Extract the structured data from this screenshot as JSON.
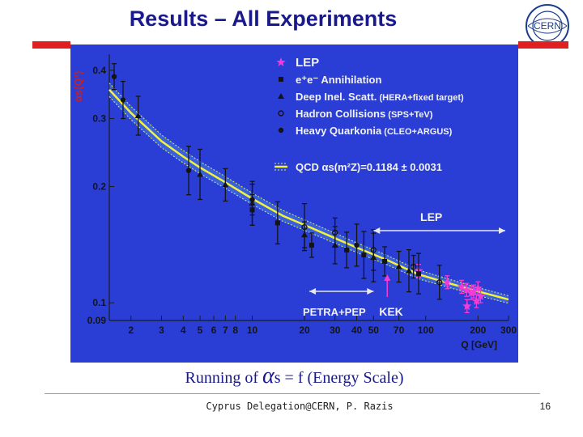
{
  "slide": {
    "title": "Results – All Experiments",
    "logo_text": "CERN",
    "caption_prefix": "Running of ",
    "caption_alpha": "α",
    "caption_suffix": "s = f (Energy Scale)",
    "footer": "Cyprus Delegation@CERN, P. Razis",
    "page_number": "16",
    "colors": {
      "title": "#1a1a8c",
      "accent_red": "#e02020",
      "plot_bg": "#2a3ed6"
    }
  },
  "chart_data": {
    "type": "scatter",
    "title": "",
    "xlabel": "Q [GeV]",
    "ylabel": "αs(Q²)",
    "xscale": "log",
    "xlim": [
      1.5,
      300
    ],
    "ylim": [
      0.09,
      0.44
    ],
    "x_ticks": [
      2,
      3,
      4,
      5,
      6,
      7,
      8,
      10,
      20,
      30,
      40,
      50,
      70,
      100,
      200,
      300
    ],
    "x_tick_labels": [
      "2",
      "3",
      "4",
      "5",
      "6",
      "7",
      "8",
      "10",
      "20",
      "30",
      "40",
      "50",
      "70",
      "100",
      "200",
      "300"
    ],
    "y_ticks": [
      0.09,
      0.1,
      0.2,
      0.3,
      0.4
    ],
    "y_tick_labels": [
      "0.09",
      "0.1",
      "0.2",
      "0.3",
      "0.4"
    ],
    "legend": [
      {
        "marker": "star",
        "label": "LEP",
        "detail": ""
      },
      {
        "marker": "square",
        "label": "e⁺e⁻ Annihilation",
        "detail": ""
      },
      {
        "marker": "triangle",
        "label": "Deep Inel. Scatt.",
        "detail": "(HERA+fixed target)"
      },
      {
        "marker": "cross",
        "label": "Hadron Collisions",
        "detail": "(SPS+TeV)"
      },
      {
        "marker": "circle",
        "label": "Heavy Quarkonia",
        "detail": "(CLEO+ARGUS)"
      }
    ],
    "qcd_band_label": "QCD αs(m²Z)=0.1184 ± 0.0031",
    "annotations": [
      "LEP",
      "PETRA+PEP",
      "KEK"
    ],
    "series": [
      {
        "name": "LEP",
        "marker": "star",
        "points": [
          [
            91,
            0.121
          ],
          [
            133,
            0.113
          ],
          [
            161,
            0.11
          ],
          [
            172,
            0.108
          ],
          [
            183,
            0.106
          ],
          [
            189,
            0.107
          ],
          [
            200,
            0.109
          ],
          [
            207,
            0.104
          ],
          [
            196,
            0.101
          ],
          [
            173,
            0.098
          ]
        ]
      },
      {
        "name": "e⁺e⁻ Annihilation",
        "marker": "square",
        "points": [
          [
            10,
            0.174
          ],
          [
            14,
            0.161
          ],
          [
            22,
            0.141
          ],
          [
            35,
            0.137
          ],
          [
            44,
            0.133
          ],
          [
            58,
            0.128
          ],
          [
            91,
            0.119
          ]
        ]
      },
      {
        "name": "Deep Inel. Scatt.",
        "marker": "triangle",
        "points": [
          [
            2.2,
            0.305
          ],
          [
            5,
            0.215
          ],
          [
            7,
            0.202
          ],
          [
            10,
            0.181
          ],
          [
            20,
            0.15
          ],
          [
            30,
            0.141
          ],
          [
            50,
            0.131
          ],
          [
            70,
            0.124
          ],
          [
            80,
            0.121
          ]
        ]
      },
      {
        "name": "Hadron Collisions",
        "marker": "cross",
        "points": [
          [
            20,
            0.157
          ],
          [
            30,
            0.152
          ],
          [
            50,
            0.137
          ],
          [
            85,
            0.124
          ],
          [
            120,
            0.113
          ]
        ]
      },
      {
        "name": "Heavy Quarkonia",
        "marker": "circle",
        "points": [
          [
            1.6,
            0.385
          ],
          [
            1.8,
            0.335
          ],
          [
            4.3,
            0.22
          ],
          [
            10,
            0.185
          ],
          [
            40,
            0.141
          ]
        ]
      }
    ],
    "qcd_curve": {
      "alpha_mz": 0.1184,
      "error": 0.0031,
      "x": [
        1.5,
        2,
        3,
        4,
        5,
        7,
        10,
        15,
        20,
        30,
        40,
        60,
        91,
        130,
        200,
        300
      ],
      "y": [
        0.356,
        0.31,
        0.262,
        0.239,
        0.224,
        0.205,
        0.186,
        0.168,
        0.159,
        0.147,
        0.139,
        0.129,
        0.1184,
        0.113,
        0.107,
        0.102
      ]
    },
    "grid": false,
    "legend_placement": "top-right"
  }
}
